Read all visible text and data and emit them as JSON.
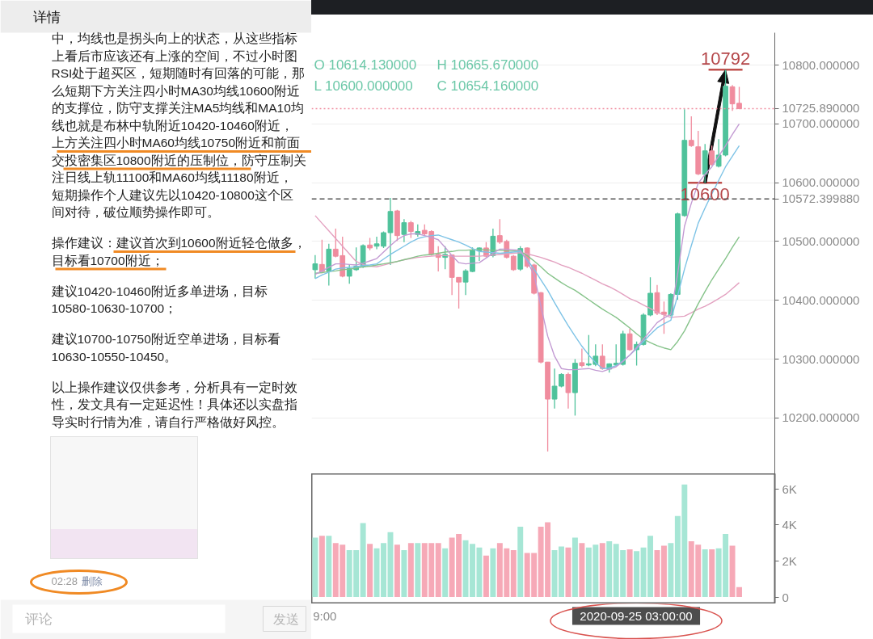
{
  "chart_data": [
    {
      "type": "other",
      "title": "详情",
      "annotations": [
        "中，均线也是拐头向上的状态，从这些指标",
        "上看后市应该还有上涨的空间，不过小时图",
        "RSI处于超买区，短期随时有回落的可能，那",
        "么短期下方关注四小时MA30均线10600附近",
        "的支撑位，防守支撑关注MA5均线和MA10均",
        "线也就是布林中轨附近10420-10460附近，",
        "上方关注四小时MA60均线10750附近和前面",
        "交投密集区10800附近的压制位，防守压制关",
        "注日线上轨11100和MA60均线11180附近，",
        "短期操作个人建议先以10420-10800这个区",
        "间对待，破位顺势操作即可。",
        "操作建议：建议首次到10600附近轻仓做多，",
        "目标看10700附近；",
        "建议10420-10460附近多单进场，目标",
        "10580-10630-10700；",
        "建议10700-10750附近空单进场，目标看",
        "10630-10550-10450。",
        "以上操作建议仅供参考，分析具有一定时效",
        "性，发文具有一定延迟性！具体还以实盘指",
        "导实时行情为准，请自行严格做好风控。",
        "02:28",
        "删除",
        "评论",
        "发送"
      ]
    },
    {
      "type": "candlestick",
      "categories": [
        null,
        null,
        null,
        null,
        null,
        null,
        null,
        null,
        null,
        null,
        null,
        null,
        null,
        null,
        null,
        null,
        null,
        null,
        null,
        null,
        null,
        null,
        null,
        null,
        null,
        null,
        null,
        null,
        null,
        null,
        null,
        null,
        null,
        null,
        null,
        null,
        null,
        null,
        null,
        null,
        null,
        null,
        null,
        null,
        null,
        null,
        null,
        null,
        null,
        null,
        null,
        null,
        null,
        null,
        null,
        null,
        null,
        null,
        null,
        null,
        null,
        null,
        null
      ],
      "ohlc": [
        [
          10452,
          10477,
          10437,
          10462
        ],
        [
          10461,
          10503,
          10446,
          10449
        ],
        [
          10450,
          10496,
          10425,
          10487
        ],
        [
          10487,
          10522,
          10473,
          10475
        ],
        [
          10476,
          10508,
          10439,
          10441
        ],
        [
          10441,
          10460,
          10428,
          10454
        ],
        [
          10452,
          10490,
          10450,
          10458
        ],
        [
          10457,
          10495,
          10455,
          10493
        ],
        [
          10494,
          10506,
          10485,
          10489
        ],
        [
          10492,
          10508,
          10487,
          10496
        ],
        [
          10492,
          10517,
          10489,
          10515
        ],
        [
          10515,
          10574,
          10460,
          10551
        ],
        [
          10552,
          10554,
          10501,
          10510
        ],
        [
          10512,
          10538,
          10499,
          10532
        ],
        [
          10532,
          10535,
          10506,
          10517
        ],
        [
          10512,
          10529,
          10508,
          10517
        ],
        [
          10519,
          10529,
          10510,
          10513
        ],
        [
          10517,
          10519,
          10476,
          10478
        ],
        [
          10478,
          10492,
          10449,
          10473
        ],
        [
          10473,
          10492,
          10453,
          10478
        ],
        [
          10477,
          10478,
          10409,
          10439
        ],
        [
          10439,
          10439,
          10386,
          10431
        ],
        [
          10431,
          10453,
          10409,
          10450
        ],
        [
          10449,
          10490,
          10448,
          10485
        ],
        [
          10484,
          10490,
          10467,
          10489
        ],
        [
          10489,
          10499,
          10473,
          10475
        ],
        [
          10476,
          10522,
          10473,
          10509
        ],
        [
          10510,
          10538,
          10496,
          10499
        ],
        [
          10500,
          10503,
          10471,
          10473
        ],
        [
          10475,
          10477,
          10450,
          10452
        ],
        [
          10453,
          10492,
          10450,
          10488
        ],
        [
          10489,
          10490,
          10455,
          10458
        ],
        [
          10460,
          10462,
          10410,
          10412
        ],
        [
          10413,
          10414,
          10293,
          10295
        ],
        [
          10295,
          10295,
          10143,
          10232
        ],
        [
          10232,
          10284,
          10216,
          10254
        ],
        [
          10254,
          10276,
          10252,
          10274
        ],
        [
          10274,
          10277,
          10216,
          10243
        ],
        [
          10243,
          10300,
          10204,
          10293
        ],
        [
          10294,
          10318,
          10286,
          10289
        ],
        [
          10290,
          10341,
          10288,
          10292
        ],
        [
          10291,
          10325,
          10288,
          10305
        ],
        [
          10305,
          10325,
          10282,
          10284
        ],
        [
          10283,
          10293,
          10277,
          10292
        ],
        [
          10290,
          10325,
          10288,
          10293
        ],
        [
          10291,
          10348,
          10289,
          10343
        ],
        [
          10343,
          10352,
          10314,
          10316
        ],
        [
          10316,
          10330,
          10289,
          10325
        ],
        [
          10325,
          10378,
          10323,
          10375
        ],
        [
          10375,
          10439,
          10373,
          10412
        ],
        [
          10413,
          10426,
          10375,
          10378
        ],
        [
          10380,
          10398,
          10343,
          10376
        ],
        [
          10375,
          10412,
          10373,
          10410
        ],
        [
          10410,
          10549,
          10401,
          10547
        ],
        [
          10544,
          10725,
          10542,
          10672
        ],
        [
          10672,
          10713,
          10661,
          10663
        ],
        [
          10661,
          10688,
          10613,
          10615
        ],
        [
          10614.13,
          10665.67,
          10600,
          10654.16
        ],
        [
          10654,
          10663,
          10629,
          10631
        ],
        [
          10628,
          10674,
          10626,
          10647
        ],
        [
          10647,
          10792,
          10645,
          10764
        ],
        [
          10763,
          10766,
          10722,
          10734
        ],
        [
          10735,
          10763,
          10725,
          10725.89
        ]
      ],
      "colors": [
        "#4fc29b",
        "#f08c9e",
        "#4fc29b",
        "#f08c9e",
        "#f08c9e",
        "#4fc29b",
        "#4fc29b",
        "#4fc29b",
        "#f08c9e",
        "#4fc29b",
        "#4fc29b",
        "#4fc29b",
        "#f08c9e",
        "#4fc29b",
        "#f08c9e",
        "#4fc29b",
        "#f08c9e",
        "#f08c9e",
        "#f08c9e",
        "#4fc29b",
        "#f08c9e",
        "#f08c9e",
        "#4fc29b",
        "#4fc29b",
        "#4fc29b",
        "#f08c9e",
        "#4fc29b",
        "#f08c9e",
        "#f08c9e",
        "#f08c9e",
        "#4fc29b",
        "#f08c9e",
        "#f08c9e",
        "#f08c9e",
        "#f08c9e",
        "#4fc29b",
        "#4fc29b",
        "#f08c9e",
        "#4fc29b",
        "#f08c9e",
        "#4fc29b",
        "#4fc29b",
        "#f08c9e",
        "#4fc29b",
        "#4fc29b",
        "#4fc29b",
        "#f08c9e",
        "#4fc29b",
        "#4fc29b",
        "#4fc29b",
        "#f08c9e",
        "#f08c9e",
        "#4fc29b",
        "#4fc29b",
        "#4fc29b",
        "#f08c9e",
        "#f08c9e",
        "#4fc29b",
        "#f08c9e",
        "#4fc29b",
        "#4fc29b",
        "#f08c9e",
        "#f08c9e"
      ],
      "ylim": [
        10105,
        10855
      ],
      "yticks": [
        {
          "value": 10200,
          "label": "10200.000000"
        },
        {
          "value": 10300,
          "label": "10300.000000"
        },
        {
          "value": 10400,
          "label": "10400.000000"
        },
        {
          "value": 10500,
          "label": "10500.000000"
        },
        {
          "value": 10600,
          "label": "10600.000000"
        },
        {
          "value": 10700,
          "label": "10700.000000"
        },
        {
          "value": 10800,
          "label": "10800.000000"
        }
      ],
      "grid": "y",
      "series": [
        {
          "type": "line",
          "color": "#e3a1c0",
          "values": [
            10544,
            10531,
            10518,
            10505,
            10492,
            10479,
            10466,
            10461,
            10458,
            10457,
            10460,
            10463,
            10466,
            10469,
            10471,
            10473,
            10474,
            10475,
            10476,
            10476,
            10475,
            10475,
            10475,
            10475,
            10475,
            10476,
            10477,
            10478,
            10479,
            10480,
            10481,
            10479,
            10476,
            10473,
            10469,
            10465,
            10460,
            10456,
            10451,
            10446,
            10440,
            10434,
            10428,
            10423,
            10417,
            10410,
            10403,
            10398,
            10392,
            10386,
            10380,
            10375,
            10371,
            10372,
            10373,
            10379,
            10385,
            10390,
            10396,
            10403,
            10410,
            10420,
            10430
          ]
        },
        {
          "type": "line",
          "color": "#86c38a",
          "values": [
            10446,
            10447,
            10449,
            10450,
            10452,
            10453,
            10455,
            10457,
            10458,
            10460,
            10462,
            10464,
            10466,
            10469,
            10472,
            10475,
            10477,
            10478,
            10480,
            10482,
            10483,
            10485,
            10485,
            10486,
            10486,
            10486,
            10485,
            10485,
            10484,
            10484,
            10483,
            10476,
            10467,
            10457,
            10446,
            10438,
            10430,
            10423,
            10417,
            10409,
            10401,
            10393,
            10385,
            10378,
            10371,
            10362,
            10353,
            10343,
            10334,
            10328,
            10323,
            10319,
            10316,
            10330,
            10348,
            10371,
            10394,
            10415,
            10435,
            10453,
            10471,
            10490,
            10508
          ]
        },
        {
          "type": "line",
          "color": "#7ec3e6",
          "values": [
            10437,
            10443,
            10448,
            10453,
            10455,
            10456,
            10457,
            10459,
            10460,
            10462,
            10470,
            10478,
            10485,
            10492,
            10499,
            10505,
            10508,
            10510,
            10511,
            10507,
            10503,
            10499,
            10494,
            10488,
            10483,
            10482,
            10481,
            10480,
            10481,
            10482,
            10483,
            10469,
            10453,
            10435,
            10417,
            10396,
            10376,
            10357,
            10339,
            10322,
            10307,
            10294,
            10284,
            10285,
            10289,
            10297,
            10307,
            10318,
            10330,
            10342,
            10353,
            10360,
            10366,
            10408,
            10453,
            10493,
            10531,
            10557,
            10581,
            10604,
            10627,
            10645,
            10663
          ]
        },
        {
          "type": "line",
          "color": "#c39bd3",
          "values": [
            10444,
            10450,
            10456,
            10462,
            10462,
            10461,
            10460,
            10463,
            10467,
            10471,
            10482,
            10493,
            10503,
            10510,
            10513,
            10513,
            10510,
            10507,
            10503,
            10490,
            10476,
            10464,
            10462,
            10463,
            10464,
            10472,
            10480,
            10487,
            10487,
            10486,
            10485,
            10466,
            10444,
            10390,
            10339,
            10305,
            10284,
            10282,
            10282,
            10283,
            10284,
            10281,
            10279,
            10283,
            10287,
            10296,
            10307,
            10320,
            10334,
            10348,
            10362,
            10370,
            10376,
            10445,
            10526,
            10565,
            10599,
            10614,
            10627,
            10645,
            10663,
            10682,
            10700
          ]
        }
      ],
      "ref_lines": [
        {
          "axis": "y",
          "value": 10725.89,
          "label": "10725.890000",
          "color": "#f08c9e",
          "line_style": "dotted"
        },
        {
          "axis": "y",
          "value": 10572.39988,
          "label": "10572.399880",
          "color": "#555555",
          "line_style": "dashed"
        }
      ],
      "annotations": [
        "O 10614.130000",
        "H 10665.670000",
        "L 10600.000000",
        "C 10654.160000",
        {
          "text": "10792",
          "y": 10792
        },
        {
          "text": "10600",
          "y": 10600
        }
      ]
    },
    {
      "type": "bar",
      "categories": [
        null,
        null,
        null,
        null,
        null,
        null,
        null,
        null,
        null,
        null,
        null,
        null,
        null,
        null,
        null,
        null,
        null,
        null,
        null,
        null,
        null,
        null,
        null,
        null,
        null,
        null,
        null,
        null,
        null,
        null,
        null,
        null,
        null,
        null,
        null,
        null,
        null,
        null,
        null,
        null,
        null,
        null,
        null,
        null,
        null,
        null,
        null,
        null,
        null,
        null,
        null,
        null,
        null,
        null,
        null,
        null,
        null,
        null,
        null,
        null,
        null,
        null,
        null
      ],
      "values": [
        3300,
        3400,
        3400,
        3000,
        2900,
        2600,
        2600,
        4100,
        2950,
        2700,
        3000,
        3600,
        2900,
        2600,
        3000,
        3000,
        3000,
        3000,
        3000,
        2700,
        3300,
        3500,
        3150,
        2950,
        2750,
        2300,
        2700,
        3000,
        2700,
        2600,
        3900,
        2450,
        2450,
        3900,
        4150,
        2600,
        2800,
        2750,
        3300,
        3000,
        2750,
        2900,
        3000,
        3100,
        2950,
        2600,
        2650,
        2550,
        2750,
        3400,
        2600,
        2850,
        3000,
        4500,
        6250,
        3100,
        2900,
        2650,
        2650,
        2700,
        3500,
        2850,
        550
      ],
      "colors": [
        "#a6e6d5",
        "#f6a9b7",
        "#a6e6d5",
        "#f6a9b7",
        "#f6a9b7",
        "#a6e6d5",
        "#a6e6d5",
        "#a6e6d5",
        "#f6a9b7",
        "#a6e6d5",
        "#a6e6d5",
        "#a6e6d5",
        "#f6a9b7",
        "#a6e6d5",
        "#f6a9b7",
        "#a6e6d5",
        "#f6a9b7",
        "#f6a9b7",
        "#f6a9b7",
        "#a6e6d5",
        "#f6a9b7",
        "#f6a9b7",
        "#a6e6d5",
        "#a6e6d5",
        "#a6e6d5",
        "#f6a9b7",
        "#a6e6d5",
        "#f6a9b7",
        "#f6a9b7",
        "#f6a9b7",
        "#a6e6d5",
        "#f6a9b7",
        "#f6a9b7",
        "#f6a9b7",
        "#f6a9b7",
        "#a6e6d5",
        "#a6e6d5",
        "#f6a9b7",
        "#a6e6d5",
        "#f6a9b7",
        "#a6e6d5",
        "#a6e6d5",
        "#f6a9b7",
        "#a6e6d5",
        "#a6e6d5",
        "#a6e6d5",
        "#f6a9b7",
        "#a6e6d5",
        "#a6e6d5",
        "#a6e6d5",
        "#f6a9b7",
        "#f6a9b7",
        "#a6e6d5",
        "#a6e6d5",
        "#a6e6d5",
        "#f6a9b7",
        "#f6a9b7",
        "#a6e6d5",
        "#f6a9b7",
        "#a6e6d5",
        "#a6e6d5",
        "#f6a9b7",
        "#f6a9b7"
      ],
      "ylim": [
        -380,
        6840
      ],
      "yticks": [
        0,
        {
          "value": 2000,
          "label": "2K"
        },
        {
          "value": 4000,
          "label": "4K"
        },
        {
          "value": 6000,
          "label": "6K"
        }
      ],
      "annotations": [
        "9:00",
        "2020-09-25 03:00:00"
      ]
    }
  ]
}
